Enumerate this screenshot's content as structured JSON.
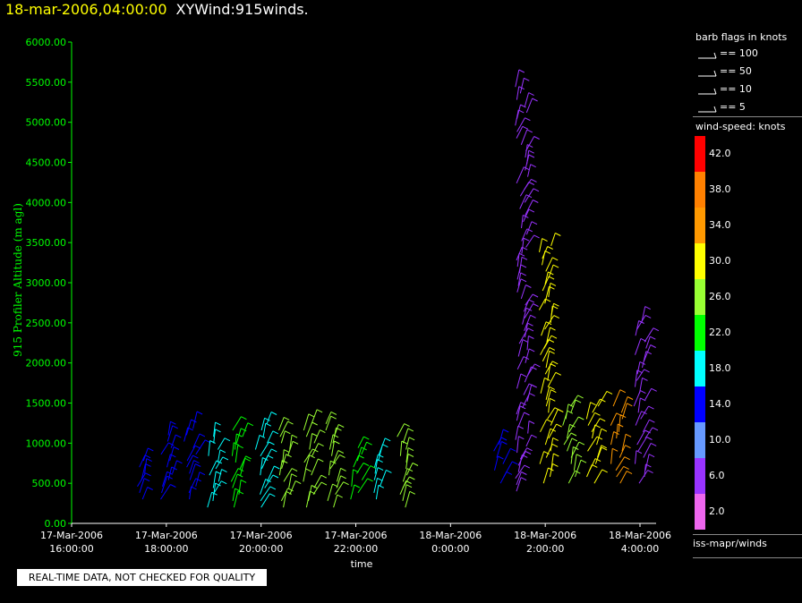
{
  "header": {
    "timestamp": "18-mar-2006,04:00:00",
    "title": "XYWind:915winds."
  },
  "legend": {
    "flags_title": "barb flags in knots",
    "flags": [
      {
        "label": "== 100"
      },
      {
        "label": "== 50"
      },
      {
        "label": "== 10"
      },
      {
        "label": "== 5"
      }
    ],
    "colorbar_title": "wind-speed: knots",
    "colorbar": [
      {
        "label": "42.0",
        "color": "#ff0000"
      },
      {
        "label": "38.0",
        "color": "#ff8000"
      },
      {
        "label": "34.0",
        "color": "#ff9900"
      },
      {
        "label": "30.0",
        "color": "#ffff00"
      },
      {
        "label": "26.0",
        "color": "#99ff33"
      },
      {
        "label": "22.0",
        "color": "#00ff00"
      },
      {
        "label": "18.0",
        "color": "#00ffff"
      },
      {
        "label": "14.0",
        "color": "#0000ff"
      },
      {
        "label": "10.0",
        "color": "#6699ff"
      },
      {
        "label": "6.0",
        "color": "#9933ff"
      },
      {
        "label": "2.0",
        "color": "#ee66ee"
      }
    ],
    "footer": "iss-mapr/winds"
  },
  "notice": "REAL-TIME DATA, NOT CHECKED FOR QUALITY",
  "chart_data": {
    "type": "scatter",
    "subtype": "wind-barb",
    "ylabel": "915 Profiler Altitude (m agl)",
    "xlabel": "time",
    "ylim": [
      0,
      6200
    ],
    "xlim_hours": [
      15.9,
      28.5
    ],
    "y_ticks": [
      "0.00",
      "500.00",
      "1000.00",
      "1500.00",
      "2000.00",
      "2500.00",
      "3000.00",
      "3500.00",
      "4000.00",
      "4500.00",
      "5000.00",
      "5500.00",
      "6000.00"
    ],
    "x_ticks": [
      {
        "date": "17-Mar-2006",
        "time": "16:00:00"
      },
      {
        "date": "17-Mar-2006",
        "time": "18:00:00"
      },
      {
        "date": "17-Mar-2006",
        "time": "20:00:00"
      },
      {
        "date": "17-Mar-2006",
        "time": "22:00:00"
      },
      {
        "date": "18-Mar-2006",
        "time": "0:00:00"
      },
      {
        "date": "18-Mar-2006",
        "time": "2:00:00"
      },
      {
        "date": "18-Mar-2006",
        "time": "4:00:00"
      }
    ],
    "profiles": [
      {
        "time": "17-Mar-2006 17:30",
        "bottom": 300,
        "top": 800,
        "color": "#0000ff"
      },
      {
        "time": "17-Mar-2006 18:00",
        "bottom": 300,
        "top": 1100,
        "color": "#0000ff"
      },
      {
        "time": "17-Mar-2006 18:30",
        "bottom": 300,
        "top": 1200,
        "color": "#0000ff"
      },
      {
        "time": "17-Mar-2006 19:00",
        "bottom": 200,
        "top": 1100,
        "color": "#00ffff"
      },
      {
        "time": "17-Mar-2006 19:30",
        "bottom": 200,
        "top": 1200,
        "color": "#00ff00"
      },
      {
        "time": "17-Mar-2006 20:00",
        "bottom": 200,
        "top": 1250,
        "color": "#00ffff"
      },
      {
        "time": "17-Mar-2006 20:30",
        "bottom": 200,
        "top": 1200,
        "color": "#99ff33"
      },
      {
        "time": "17-Mar-2006 21:00",
        "bottom": 200,
        "top": 1300,
        "color": "#99ff33"
      },
      {
        "time": "17-Mar-2006 21:30",
        "bottom": 200,
        "top": 1300,
        "color": "#99ff33"
      },
      {
        "time": "17-Mar-2006 22:00",
        "bottom": 300,
        "top": 1000,
        "color": "#00ff00"
      },
      {
        "time": "17-Mar-2006 22:30",
        "bottom": 300,
        "top": 900,
        "color": "#00ffff"
      },
      {
        "time": "17-Mar-2006 23:00",
        "bottom": 200,
        "top": 1100,
        "color": "#99ff33"
      },
      {
        "time": "18-Mar-2006 1:00",
        "bottom": 500,
        "top": 1000,
        "color": "#0000ff"
      },
      {
        "time": "18-Mar-2006 1:30",
        "bottom": 400,
        "top": 5500,
        "color": "#9933ff"
      },
      {
        "time": "18-Mar-2006 2:00",
        "bottom": 500,
        "top": 3500,
        "color": "#ffff00"
      },
      {
        "time": "18-Mar-2006 2:30",
        "bottom": 500,
        "top": 1500,
        "color": "#99ff33"
      },
      {
        "time": "18-Mar-2006 3:00",
        "bottom": 500,
        "top": 1500,
        "color": "#ffff00"
      },
      {
        "time": "18-Mar-2006 3:30",
        "bottom": 500,
        "top": 1500,
        "color": "#ff9900"
      },
      {
        "time": "18-Mar-2006 4:00",
        "bottom": 500,
        "top": 2500,
        "color": "#9933ff"
      }
    ],
    "grid": false
  }
}
